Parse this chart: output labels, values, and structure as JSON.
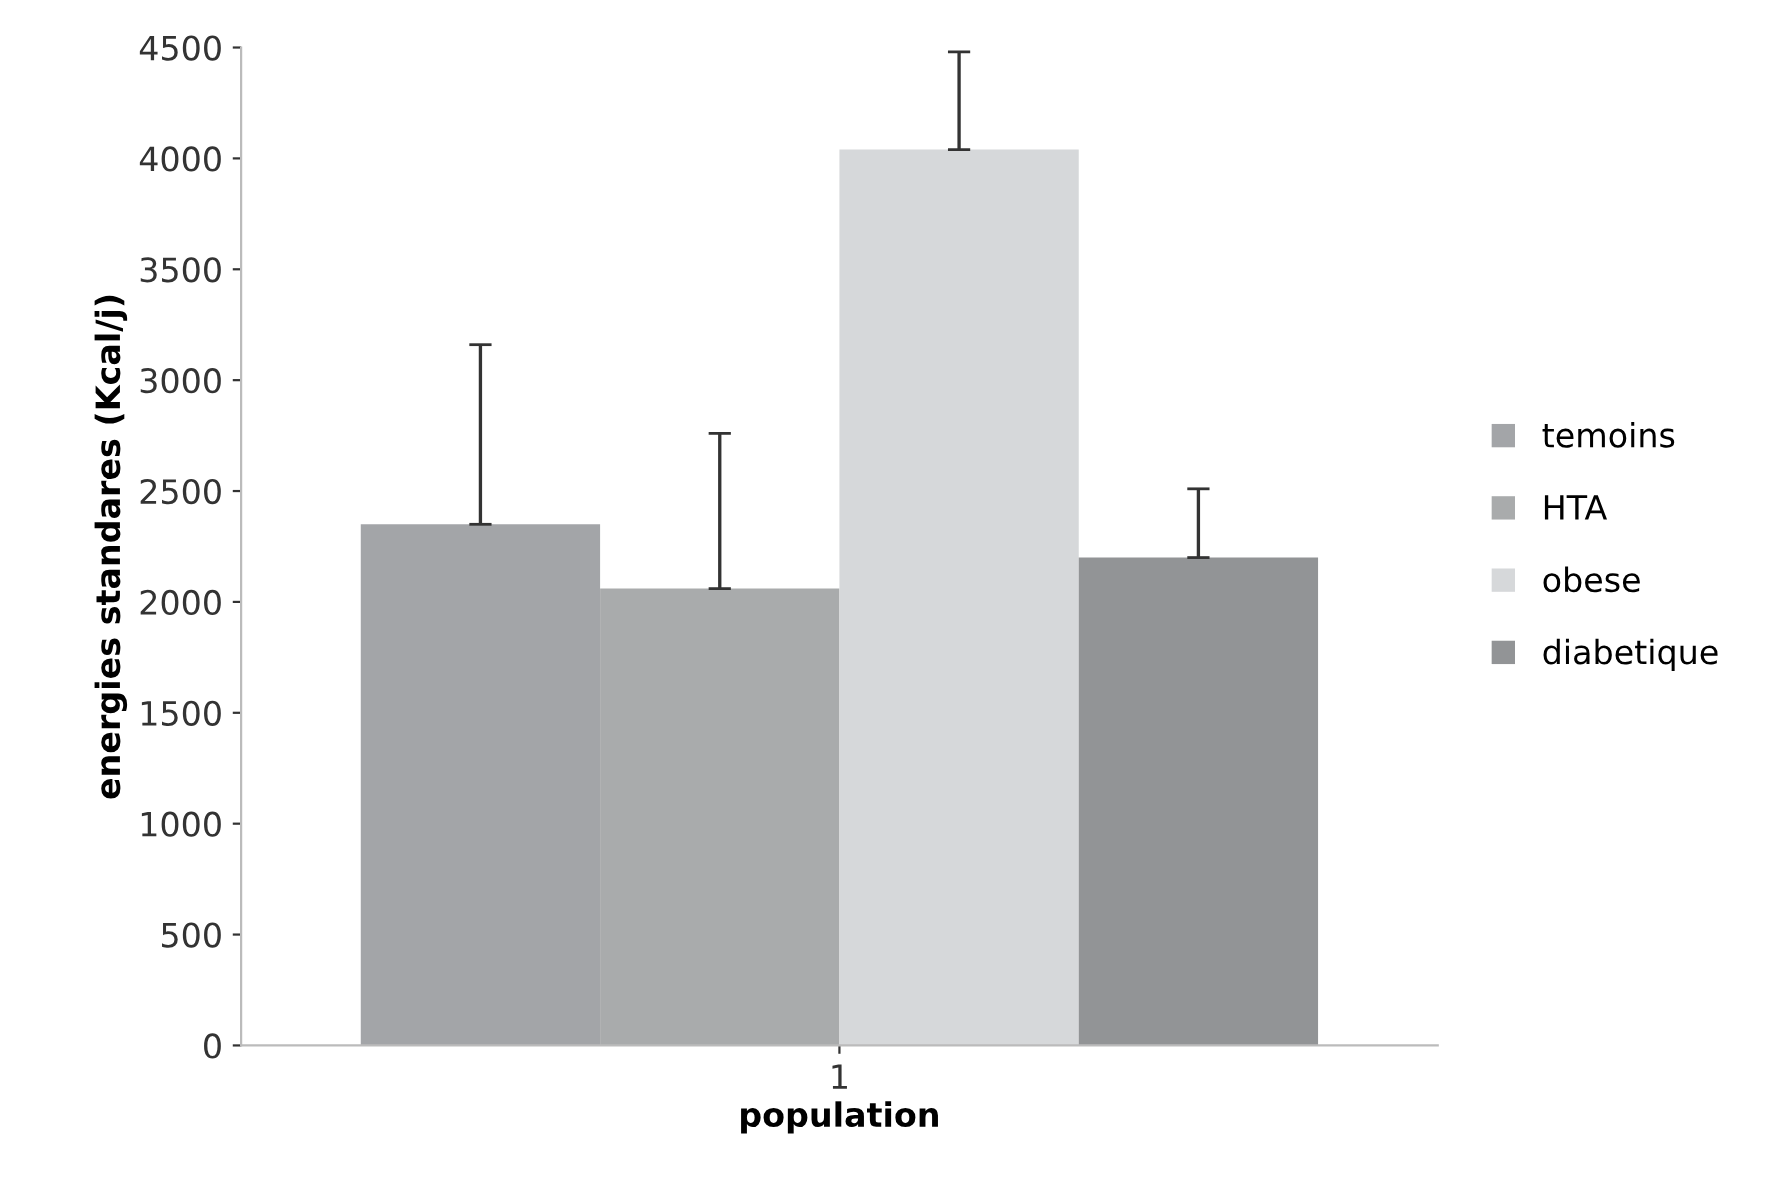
{
  "chart_data": {
    "type": "bar",
    "xlabel": "population",
    "ylabel": "energies standares (Kcal/j)",
    "categories": [
      "1"
    ],
    "series": [
      {
        "name": "temoins",
        "color": "#a3a5a8",
        "values": [
          2350
        ],
        "errors": [
          [
            2350,
            3160
          ]
        ]
      },
      {
        "name": "HTA",
        "color": "#a9abac",
        "values": [
          2060
        ],
        "errors": [
          [
            2060,
            2760
          ]
        ]
      },
      {
        "name": "obese",
        "color": "#d6d8da",
        "values": [
          4040
        ],
        "errors": [
          [
            4040,
            4480
          ]
        ]
      },
      {
        "name": "diabetique",
        "color": "#929496",
        "values": [
          2200
        ],
        "errors": [
          [
            2200,
            2510
          ]
        ]
      }
    ],
    "ylim": [
      0,
      4500
    ],
    "yticks": [
      0,
      500,
      1000,
      1500,
      2000,
      2500,
      3000,
      3500,
      4000,
      4500
    ],
    "grid": false,
    "legend": "right"
  }
}
